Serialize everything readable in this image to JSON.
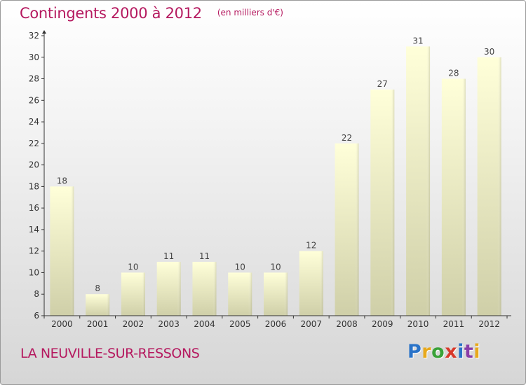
{
  "header": {
    "title": "Contingents 2000 à 2012",
    "subtitle": "(en milliers d'€)"
  },
  "footer": {
    "place": "LA NEUVILLE-SUR-RESSONS",
    "logo_letters": [
      "P",
      "r",
      "o",
      "x",
      "i",
      "t",
      "i"
    ]
  },
  "colors": {
    "accent": "#b5195f",
    "bar_top": "#ffffd9",
    "bar_bottom": "#cfcfa8",
    "axis": "#333333"
  },
  "chart_data": {
    "type": "bar",
    "title": "Contingents 2000 à 2012",
    "subtitle": "(en milliers d'€)",
    "xlabel": "",
    "ylabel": "",
    "categories": [
      "2000",
      "2001",
      "2002",
      "2003",
      "2004",
      "2005",
      "2006",
      "2007",
      "2008",
      "2009",
      "2010",
      "2011",
      "2012"
    ],
    "values": [
      18,
      8,
      10,
      11,
      11,
      10,
      10,
      12,
      22,
      27,
      31,
      28,
      30
    ],
    "ylim": [
      6,
      32
    ],
    "yticks": [
      6,
      8,
      10,
      12,
      14,
      16,
      18,
      20,
      22,
      24,
      26,
      28,
      30,
      32
    ],
    "grid": false,
    "legend": "none"
  }
}
